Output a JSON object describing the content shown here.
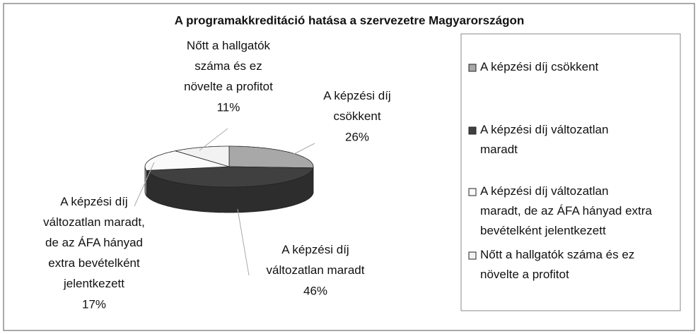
{
  "chart_data": {
    "type": "pie",
    "title": "A programakkreditáció hatása a szervezetre Magyarországon",
    "categories": [
      "A képzési díj csökkent",
      "A képzési díj változatlan maradt",
      "A képzési díj változatlan maradt, de az ÁFA hányad extra bevételként jelentkezett",
      "Nőtt a hallgatók száma és ez növelte a profitot"
    ],
    "values": [
      26,
      46,
      17,
      11
    ],
    "value_labels": [
      "26%",
      "46%",
      "17%",
      "11%"
    ],
    "colors": [
      "#a8a8a8",
      "#404040",
      "#fafafa",
      "#f2f2f2"
    ],
    "legend": "right"
  }
}
